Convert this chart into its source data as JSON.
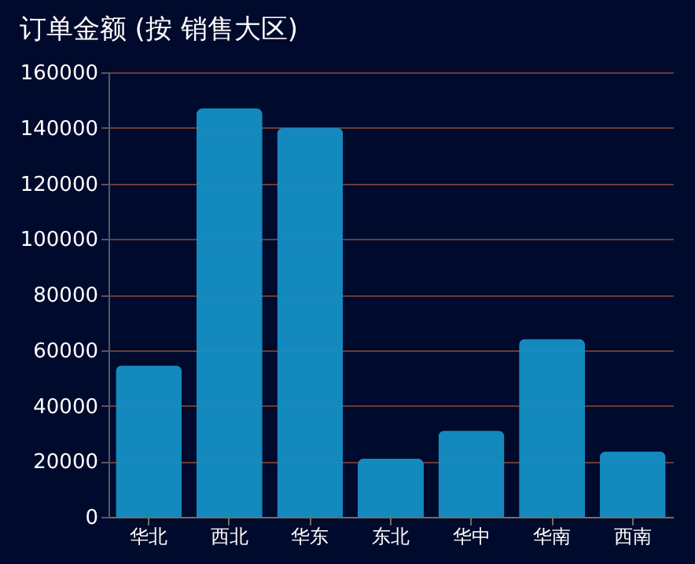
{
  "chart_data": {
    "type": "bar",
    "title": "订单金额 (按 销售大区)",
    "categories": [
      "华北",
      "西北",
      "华东",
      "东北",
      "华中",
      "华南",
      "西南"
    ],
    "values": [
      54500,
      147000,
      140000,
      21000,
      31000,
      64000,
      23500
    ],
    "color": "#1590c6",
    "ylim": [
      0,
      160000
    ],
    "yticks": [
      0,
      20000,
      40000,
      60000,
      80000,
      100000,
      120000,
      140000,
      160000
    ],
    "grid": "y"
  }
}
